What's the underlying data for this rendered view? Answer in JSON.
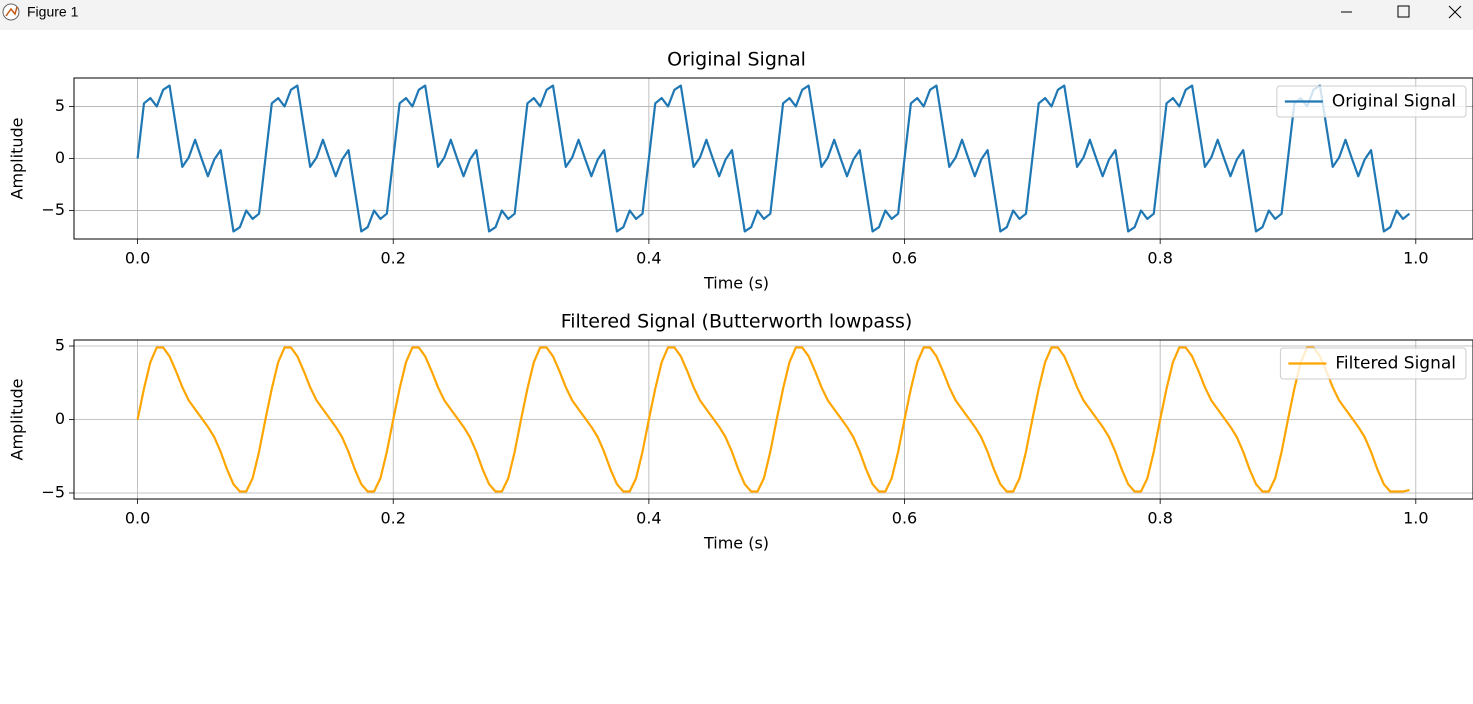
{
  "window": {
    "title": "Figure 1"
  },
  "chart_data": [
    {
      "type": "line",
      "title": "Original Signal",
      "xlabel": "Time (s)",
      "ylabel": "Amplitude",
      "x": [
        0,
        0.005,
        0.01,
        0.015,
        0.02,
        0.025,
        0.03,
        0.035,
        0.04,
        0.045,
        0.05,
        0.055,
        0.06,
        0.065,
        0.07,
        0.075,
        0.08,
        0.085,
        0.09,
        0.095,
        0.1,
        0.105,
        0.11,
        0.115,
        0.12,
        0.125,
        0.13,
        0.135,
        0.14,
        0.145,
        0.15,
        0.155,
        0.16,
        0.165,
        0.17,
        0.175,
        0.18,
        0.185,
        0.19,
        0.195,
        0.2,
        0.205,
        0.21,
        0.215,
        0.22,
        0.225,
        0.23,
        0.235,
        0.24,
        0.245,
        0.25,
        0.255,
        0.26,
        0.265,
        0.27,
        0.275,
        0.28,
        0.285,
        0.29,
        0.295,
        0.3,
        0.305,
        0.31,
        0.315,
        0.32,
        0.325,
        0.33,
        0.335,
        0.34,
        0.345,
        0.35,
        0.355,
        0.36,
        0.365,
        0.37,
        0.375,
        0.38,
        0.385,
        0.39,
        0.395,
        0.4,
        0.405,
        0.41,
        0.415,
        0.42,
        0.425,
        0.43,
        0.435,
        0.44,
        0.445,
        0.45,
        0.455,
        0.46,
        0.465,
        0.47,
        0.475,
        0.48,
        0.485,
        0.49,
        0.495,
        0.5,
        0.505,
        0.51,
        0.515,
        0.52,
        0.525,
        0.53,
        0.535,
        0.54,
        0.545,
        0.55,
        0.555,
        0.56,
        0.565,
        0.57,
        0.575,
        0.58,
        0.585,
        0.59,
        0.595,
        0.6,
        0.605,
        0.61,
        0.615,
        0.62,
        0.625,
        0.63,
        0.635,
        0.64,
        0.645,
        0.65,
        0.655,
        0.66,
        0.665,
        0.67,
        0.675,
        0.68,
        0.685,
        0.69,
        0.695,
        0.7,
        0.705,
        0.71,
        0.715,
        0.72,
        0.725,
        0.73,
        0.735,
        0.74,
        0.745,
        0.75,
        0.755,
        0.76,
        0.765,
        0.77,
        0.775,
        0.78,
        0.785,
        0.79,
        0.795,
        0.8,
        0.805,
        0.81,
        0.815,
        0.82,
        0.825,
        0.83,
        0.835,
        0.84,
        0.845,
        0.85,
        0.855,
        0.86,
        0.865,
        0.87,
        0.875,
        0.88,
        0.885,
        0.89,
        0.895,
        0.9,
        0.905,
        0.91,
        0.915,
        0.92,
        0.925,
        0.93,
        0.935,
        0.94,
        0.945,
        0.95,
        0.955,
        0.96,
        0.965,
        0.97,
        0.975,
        0.98,
        0.985,
        0.99,
        0.995
      ],
      "series": [
        {
          "name": "Original Signal",
          "color": "#1f77b4",
          "values": [
            0,
            5.3,
            5.8,
            5.0,
            6.6,
            7.0,
            3.1,
            -0.8,
            0.1,
            1.8,
            0,
            -1.7,
            -0.1,
            0.8,
            -3.1,
            -7.0,
            -6.6,
            -5.0,
            -5.8,
            -5.3,
            0,
            5.3,
            5.8,
            5.0,
            6.6,
            7.0,
            3.1,
            -0.8,
            0.1,
            1.8,
            0,
            -1.7,
            -0.1,
            0.8,
            -3.1,
            -7.0,
            -6.6,
            -5.0,
            -5.8,
            -5.3,
            0,
            5.3,
            5.8,
            5.0,
            6.6,
            7.0,
            3.1,
            -0.8,
            0.1,
            1.8,
            0,
            -1.7,
            -0.1,
            0.8,
            -3.1,
            -7.0,
            -6.6,
            -5.0,
            -5.8,
            -5.3,
            0,
            5.3,
            5.8,
            5.0,
            6.6,
            7.0,
            3.1,
            -0.8,
            0.1,
            1.8,
            0,
            -1.7,
            -0.1,
            0.8,
            -3.1,
            -7.0,
            -6.6,
            -5.0,
            -5.8,
            -5.3,
            0,
            5.3,
            5.8,
            5.0,
            6.6,
            7.0,
            3.1,
            -0.8,
            0.1,
            1.8,
            0,
            -1.7,
            -0.1,
            0.8,
            -3.1,
            -7.0,
            -6.6,
            -5.0,
            -5.8,
            -5.3,
            0,
            5.3,
            5.8,
            5.0,
            6.6,
            7.0,
            3.1,
            -0.8,
            0.1,
            1.8,
            0,
            -1.7,
            -0.1,
            0.8,
            -3.1,
            -7.0,
            -6.6,
            -5.0,
            -5.8,
            -5.3,
            0,
            5.3,
            5.8,
            5.0,
            6.6,
            7.0,
            3.1,
            -0.8,
            0.1,
            1.8,
            0,
            -1.7,
            -0.1,
            0.8,
            -3.1,
            -7.0,
            -6.6,
            -5.0,
            -5.8,
            -5.3,
            0,
            5.3,
            5.8,
            5.0,
            6.6,
            7.0,
            3.1,
            -0.8,
            0.1,
            1.8,
            0,
            -1.7,
            -0.1,
            0.8,
            -3.1,
            -7.0,
            -6.6,
            -5.0,
            -5.8,
            -5.3,
            0,
            5.3,
            5.8,
            5.0,
            6.6,
            7.0,
            3.1,
            -0.8,
            0.1,
            1.8,
            0,
            -1.7,
            -0.1,
            0.8,
            -3.1,
            -7.0,
            -6.6,
            -5.0,
            -5.8,
            -5.3,
            0,
            5.3,
            5.8,
            5.0,
            6.6,
            7.0,
            3.1,
            -0.8,
            0.1,
            1.8,
            0,
            -1.7,
            -0.1,
            0.8,
            -3.1,
            -7.0,
            -6.6,
            -5.0,
            -5.8,
            -5.3
          ]
        }
      ],
      "xlim": [
        -0.04975,
        1.04475
      ],
      "ylim": [
        -7.73,
        7.73
      ],
      "xticks": [
        {
          "value": 0,
          "label": "0.0"
        },
        0.2,
        0.4,
        0.6,
        0.8,
        {
          "value": 1,
          "label": "1.0"
        }
      ],
      "yticks": [
        {
          "value": -5,
          "label": "−5"
        },
        0,
        5
      ],
      "grid": true,
      "legend": "upper right"
    },
    {
      "type": "line",
      "title": "Filtered Signal (Butterworth lowpass)",
      "xlabel": "Time (s)",
      "ylabel": "Amplitude",
      "x": [
        0,
        0.005,
        0.01,
        0.015,
        0.02,
        0.025,
        0.03,
        0.035,
        0.04,
        0.045,
        0.05,
        0.055,
        0.06,
        0.065,
        0.07,
        0.075,
        0.08,
        0.085,
        0.09,
        0.095,
        0.1,
        0.105,
        0.11,
        0.115,
        0.12,
        0.125,
        0.13,
        0.135,
        0.14,
        0.145,
        0.15,
        0.155,
        0.16,
        0.165,
        0.17,
        0.175,
        0.18,
        0.185,
        0.19,
        0.195,
        0.2,
        0.205,
        0.21,
        0.215,
        0.22,
        0.225,
        0.23,
        0.235,
        0.24,
        0.245,
        0.25,
        0.255,
        0.26,
        0.265,
        0.27,
        0.275,
        0.28,
        0.285,
        0.29,
        0.295,
        0.3,
        0.305,
        0.31,
        0.315,
        0.32,
        0.325,
        0.33,
        0.335,
        0.34,
        0.345,
        0.35,
        0.355,
        0.36,
        0.365,
        0.37,
        0.375,
        0.38,
        0.385,
        0.39,
        0.395,
        0.4,
        0.405,
        0.41,
        0.415,
        0.42,
        0.425,
        0.43,
        0.435,
        0.44,
        0.445,
        0.45,
        0.455,
        0.46,
        0.465,
        0.47,
        0.475,
        0.48,
        0.485,
        0.49,
        0.495,
        0.5,
        0.505,
        0.51,
        0.515,
        0.52,
        0.525,
        0.53,
        0.535,
        0.54,
        0.545,
        0.55,
        0.555,
        0.56,
        0.565,
        0.57,
        0.575,
        0.58,
        0.585,
        0.59,
        0.595,
        0.6,
        0.605,
        0.61,
        0.615,
        0.62,
        0.625,
        0.63,
        0.635,
        0.64,
        0.645,
        0.65,
        0.655,
        0.66,
        0.665,
        0.67,
        0.675,
        0.68,
        0.685,
        0.69,
        0.695,
        0.7,
        0.705,
        0.71,
        0.715,
        0.72,
        0.725,
        0.73,
        0.735,
        0.74,
        0.745,
        0.75,
        0.755,
        0.76,
        0.765,
        0.77,
        0.775,
        0.78,
        0.785,
        0.79,
        0.795,
        0.8,
        0.805,
        0.81,
        0.815,
        0.82,
        0.825,
        0.83,
        0.835,
        0.84,
        0.845,
        0.85,
        0.855,
        0.86,
        0.865,
        0.87,
        0.875,
        0.88,
        0.885,
        0.89,
        0.895,
        0.9,
        0.905,
        0.91,
        0.915,
        0.92,
        0.925,
        0.93,
        0.935,
        0.94,
        0.945,
        0.95,
        0.955,
        0.96,
        0.965,
        0.97,
        0.975,
        0.98,
        0.985,
        0.99,
        0.995
      ],
      "series": [
        {
          "name": "Filtered Signal",
          "color": "#ffa500",
          "values": [
            0,
            2.1,
            3.9,
            4.9,
            4.9,
            4.3,
            3.3,
            2.2,
            1.3,
            0.7,
            0.1,
            -0.5,
            -1.2,
            -2.2,
            -3.4,
            -4.4,
            -4.9,
            -4.9,
            -4.0,
            -2.2,
            0,
            2.1,
            3.9,
            4.9,
            4.9,
            4.3,
            3.3,
            2.2,
            1.3,
            0.7,
            0.1,
            -0.5,
            -1.2,
            -2.2,
            -3.4,
            -4.4,
            -4.9,
            -4.9,
            -4.0,
            -2.2,
            0,
            2.1,
            3.9,
            4.9,
            4.9,
            4.3,
            3.3,
            2.2,
            1.3,
            0.7,
            0.1,
            -0.5,
            -1.2,
            -2.2,
            -3.4,
            -4.4,
            -4.9,
            -4.9,
            -4.0,
            -2.2,
            0,
            2.1,
            3.9,
            4.9,
            4.9,
            4.3,
            3.3,
            2.2,
            1.3,
            0.7,
            0.1,
            -0.5,
            -1.2,
            -2.2,
            -3.4,
            -4.4,
            -4.9,
            -4.9,
            -4.0,
            -2.2,
            0,
            2.1,
            3.9,
            4.9,
            4.9,
            4.3,
            3.3,
            2.2,
            1.3,
            0.7,
            0.1,
            -0.5,
            -1.2,
            -2.2,
            -3.4,
            -4.4,
            -4.9,
            -4.9,
            -4.0,
            -2.2,
            0,
            2.1,
            3.9,
            4.9,
            4.9,
            4.3,
            3.3,
            2.2,
            1.3,
            0.7,
            0.1,
            -0.5,
            -1.2,
            -2.2,
            -3.4,
            -4.4,
            -4.9,
            -4.9,
            -4.0,
            -2.2,
            0,
            2.1,
            3.9,
            4.9,
            4.9,
            4.3,
            3.3,
            2.2,
            1.3,
            0.7,
            0.1,
            -0.5,
            -1.2,
            -2.2,
            -3.4,
            -4.4,
            -4.9,
            -4.9,
            -4.0,
            -2.2,
            0,
            2.1,
            3.9,
            4.9,
            4.9,
            4.3,
            3.3,
            2.2,
            1.3,
            0.7,
            0.1,
            -0.5,
            -1.2,
            -2.2,
            -3.4,
            -4.4,
            -4.9,
            -4.9,
            -4.0,
            -2.2,
            0,
            2.1,
            3.9,
            4.9,
            4.9,
            4.3,
            3.3,
            2.2,
            1.3,
            0.7,
            0.1,
            -0.5,
            -1.2,
            -2.2,
            -3.4,
            -4.4,
            -4.9,
            -4.9,
            -4.0,
            -2.2,
            0,
            2.1,
            3.9,
            4.9,
            4.9,
            4.3,
            3.3,
            2.2,
            1.3,
            0.7,
            0.1,
            -0.5,
            -1.2,
            -2.2,
            -3.4,
            -4.4,
            -4.9,
            -4.9,
            -4.9,
            -4.8
          ]
        }
      ],
      "xlim": [
        -0.04975,
        1.04475
      ],
      "ylim": [
        -5.41,
        5.41
      ],
      "xticks": [
        {
          "value": 0,
          "label": "0.0"
        },
        0.2,
        0.4,
        0.6,
        0.8,
        {
          "value": 1,
          "label": "1.0"
        }
      ],
      "yticks": [
        {
          "value": -5,
          "label": "−5"
        },
        0,
        5
      ],
      "grid": true,
      "legend": "upper right"
    }
  ]
}
